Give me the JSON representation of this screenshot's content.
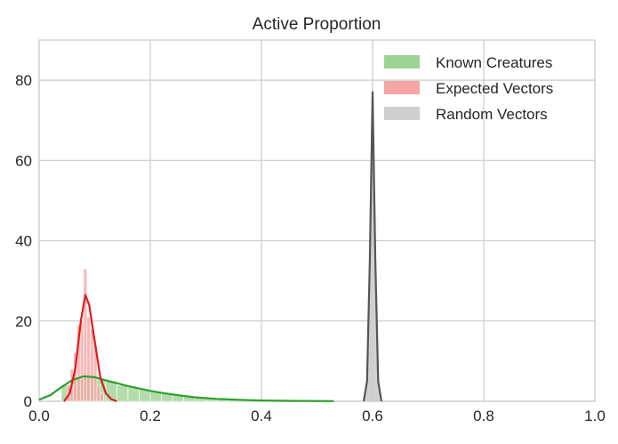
{
  "chart_data": {
    "type": "histogram-kde",
    "title": "Active Proportion",
    "xlabel": "",
    "ylabel": "",
    "xlim": [
      0.0,
      1.0
    ],
    "ylim": [
      0,
      90
    ],
    "x_ticks": [
      0.0,
      0.2,
      0.4,
      0.6,
      0.8,
      1.0
    ],
    "x_tick_labels": [
      "0.0",
      "0.2",
      "0.4",
      "0.6",
      "0.8",
      "1.0"
    ],
    "y_ticks": [
      0,
      20,
      40,
      60,
      80
    ],
    "y_tick_labels": [
      "0",
      "20",
      "40",
      "60",
      "80"
    ],
    "grid": true,
    "legend_position": "top-right",
    "series": [
      {
        "name": "Known Creatures",
        "color": "#2ca02c",
        "bar_color": "#98d18f",
        "kde": [
          [
            0.0,
            0.4
          ],
          [
            0.02,
            1.5
          ],
          [
            0.04,
            3.5
          ],
          [
            0.06,
            5.3
          ],
          [
            0.08,
            6.2
          ],
          [
            0.1,
            6.0
          ],
          [
            0.12,
            5.2
          ],
          [
            0.14,
            4.5
          ],
          [
            0.16,
            3.8
          ],
          [
            0.18,
            3.2
          ],
          [
            0.2,
            2.6
          ],
          [
            0.22,
            2.1
          ],
          [
            0.25,
            1.5
          ],
          [
            0.28,
            1.0
          ],
          [
            0.32,
            0.6
          ],
          [
            0.36,
            0.35
          ],
          [
            0.4,
            0.2
          ],
          [
            0.45,
            0.1
          ],
          [
            0.53,
            0.05
          ]
        ],
        "hist_bins": [
          [
            0.04,
            4.0
          ],
          [
            0.06,
            5.5
          ],
          [
            0.08,
            6.0
          ],
          [
            0.1,
            5.5
          ],
          [
            0.12,
            5.0
          ],
          [
            0.14,
            4.0
          ],
          [
            0.16,
            3.5
          ],
          [
            0.18,
            3.0
          ],
          [
            0.2,
            2.5
          ],
          [
            0.22,
            2.0
          ],
          [
            0.24,
            1.6
          ],
          [
            0.26,
            1.2
          ],
          [
            0.28,
            0.9
          ],
          [
            0.3,
            0.7
          ],
          [
            0.32,
            0.5
          ],
          [
            0.34,
            0.4
          ],
          [
            0.36,
            0.3
          ],
          [
            0.38,
            0.25
          ],
          [
            0.4,
            0.2
          ],
          [
            0.42,
            0.15
          ],
          [
            0.44,
            0.12
          ],
          [
            0.46,
            0.1
          ],
          [
            0.48,
            0.1
          ],
          [
            0.5,
            0.1
          ]
        ],
        "bin_width": 0.02
      },
      {
        "name": "Expected Vectors",
        "color": "#e31a1c",
        "bar_color": "#f4a0a0",
        "kde": [
          [
            0.045,
            0
          ],
          [
            0.055,
            2
          ],
          [
            0.065,
            8
          ],
          [
            0.075,
            20
          ],
          [
            0.083,
            26.5
          ],
          [
            0.09,
            24
          ],
          [
            0.1,
            15
          ],
          [
            0.11,
            6
          ],
          [
            0.12,
            2
          ],
          [
            0.13,
            0.5
          ],
          [
            0.14,
            0
          ]
        ],
        "hist_bins": [
          [
            0.05,
            4
          ],
          [
            0.056,
            8
          ],
          [
            0.062,
            12
          ],
          [
            0.068,
            19
          ],
          [
            0.074,
            20
          ],
          [
            0.08,
            33
          ],
          [
            0.086,
            21
          ],
          [
            0.092,
            18
          ],
          [
            0.098,
            14
          ],
          [
            0.104,
            4
          ],
          [
            0.11,
            2
          ]
        ],
        "bin_width": 0.006
      },
      {
        "name": "Random Vectors",
        "color": "#555555",
        "bar_color": "#cccccc",
        "kde": [
          [
            0.584,
            0
          ],
          [
            0.59,
            5
          ],
          [
            0.595,
            35
          ],
          [
            0.6,
            77
          ],
          [
            0.605,
            35
          ],
          [
            0.61,
            5
          ],
          [
            0.616,
            0
          ]
        ],
        "hist_bins": [],
        "bin_width": 0.004
      }
    ]
  }
}
